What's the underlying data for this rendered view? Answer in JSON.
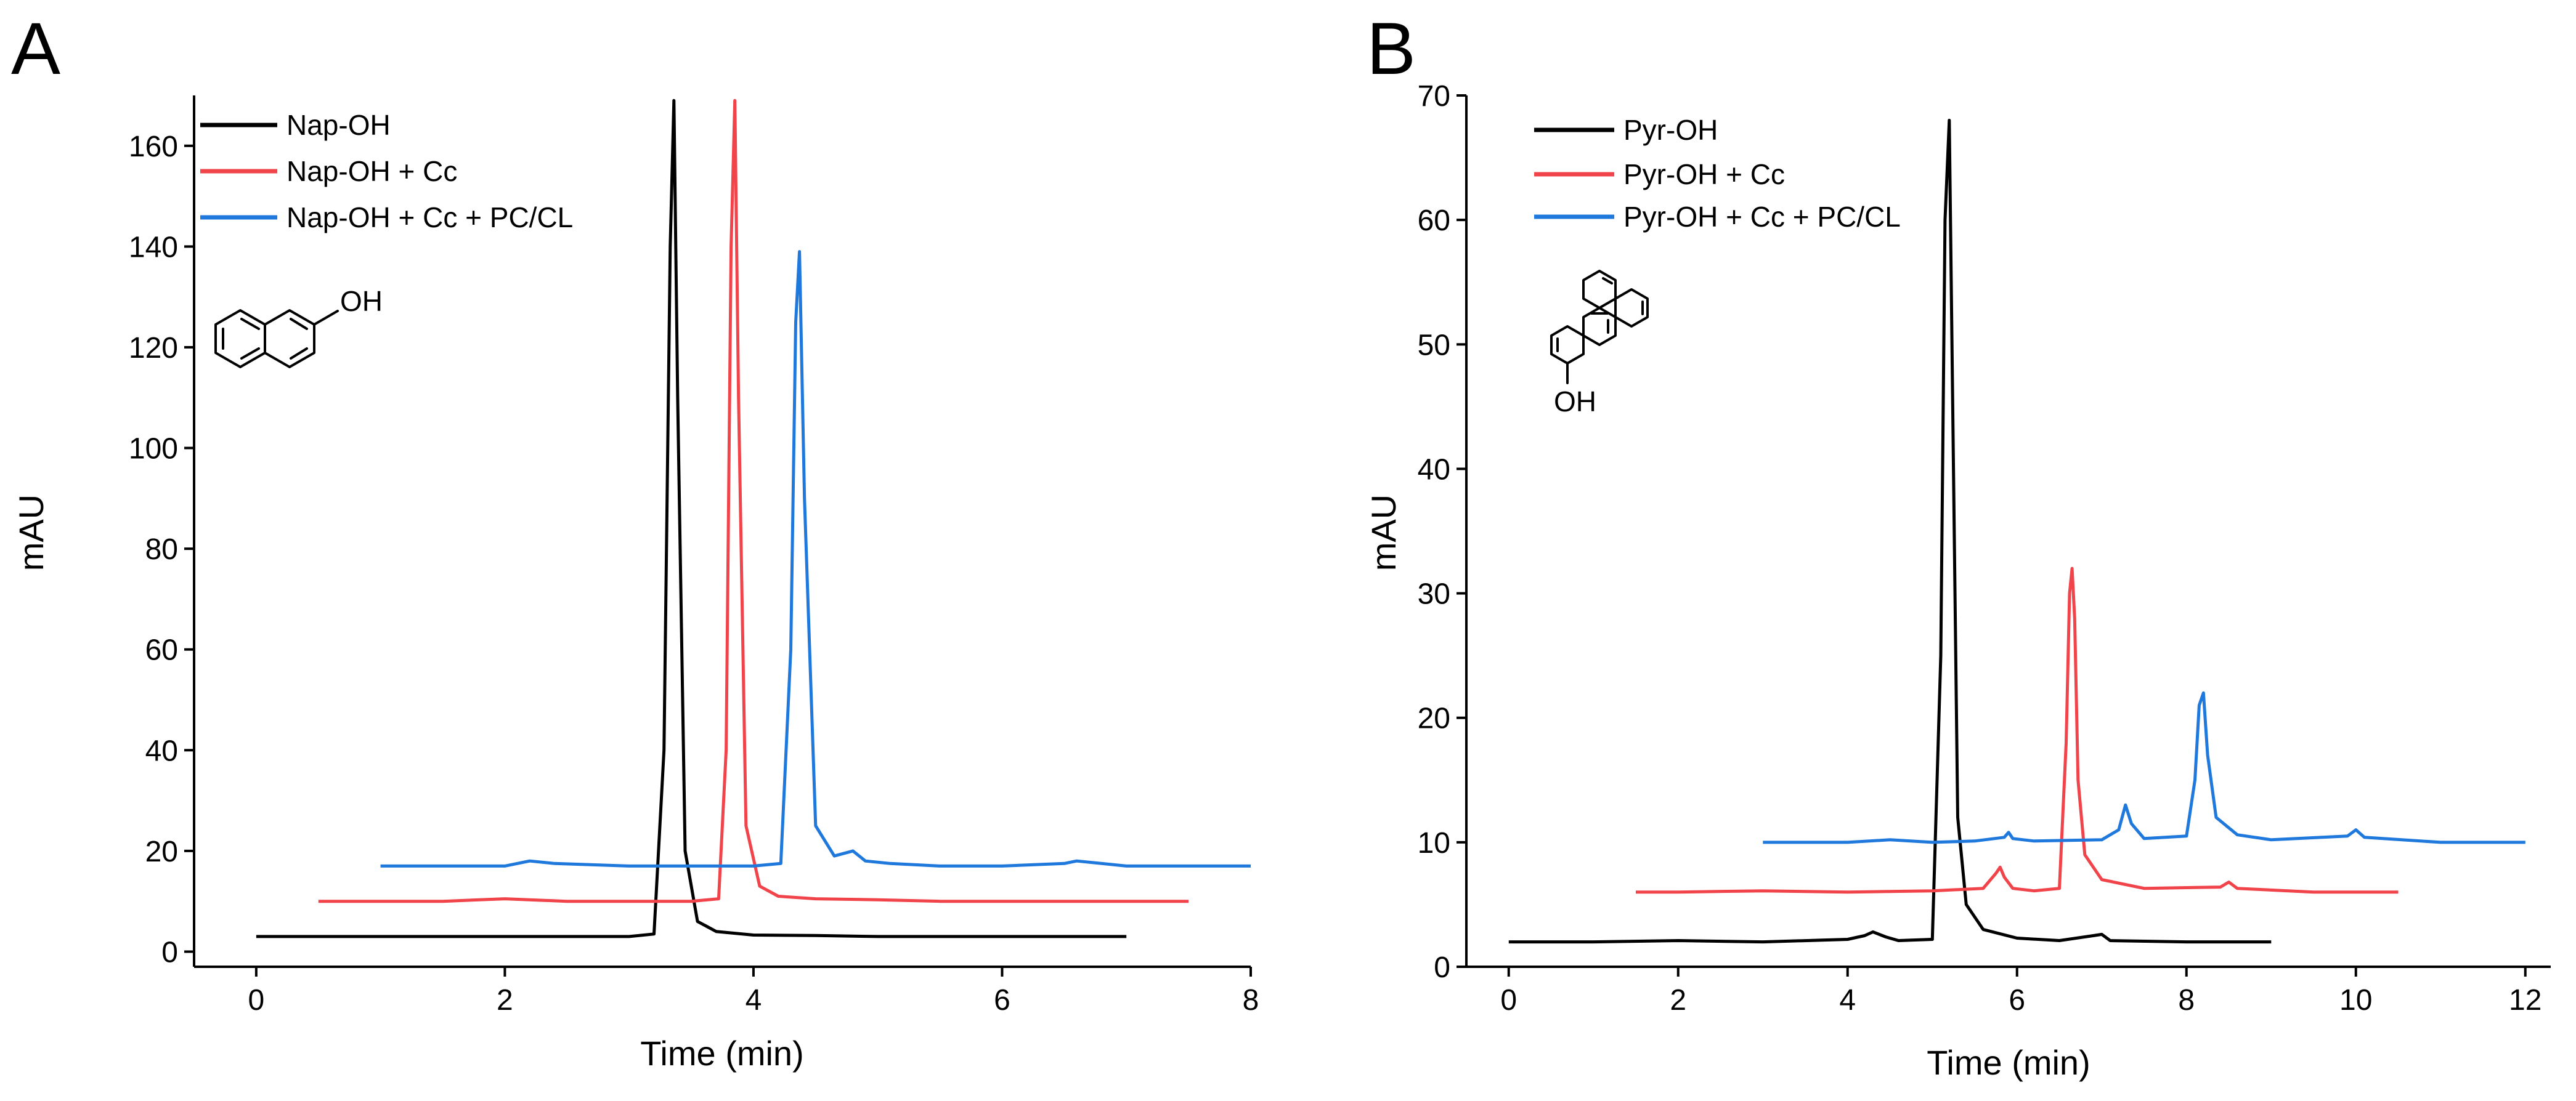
{
  "colors": {
    "black": "#000000",
    "red": "#f0434a",
    "blue": "#1f78dc"
  },
  "chart_data": [
    {
      "type": "line",
      "panel_label": "A",
      "xlabel": "Time (min)",
      "ylabel": "mAU",
      "xlim": [
        -0.5,
        8
      ],
      "ylim": [
        -3,
        170
      ],
      "xticks": [
        0,
        2,
        4,
        6,
        8
      ],
      "yticks": [
        0,
        20,
        40,
        60,
        80,
        100,
        120,
        140,
        160
      ],
      "legend_position": "top-left",
      "structure_label": "OH",
      "structure_icon": "naphthol-structure-icon",
      "series": [
        {
          "name": "Nap-OH",
          "color": "#000000",
          "x": [
            0,
            0.5,
            1,
            1.5,
            2,
            2.5,
            3,
            3.2,
            3.28,
            3.33,
            3.36,
            3.39,
            3.45,
            3.55,
            3.7,
            4,
            4.5,
            5,
            5.5,
            6,
            6.5,
            7
          ],
          "y": [
            3,
            3,
            3,
            3,
            3,
            3,
            3,
            3.5,
            40,
            140,
            169,
            110,
            20,
            6,
            4,
            3.3,
            3.2,
            3,
            3,
            3,
            3,
            3
          ]
        },
        {
          "name": "Nap-OH + Cc",
          "color": "#f0434a",
          "x": [
            0.5,
            1,
            1.5,
            2,
            2.5,
            3,
            3.5,
            3.72,
            3.78,
            3.82,
            3.85,
            3.88,
            3.94,
            4.05,
            4.2,
            4.5,
            5,
            5.5,
            6,
            6.5,
            7,
            7.5
          ],
          "y": [
            10,
            10,
            10,
            10.5,
            10,
            10,
            10,
            10.5,
            40,
            140,
            169,
            110,
            25,
            13,
            11,
            10.5,
            10.3,
            10,
            10,
            10,
            10,
            10
          ]
        },
        {
          "name": "Nap-OH + Cc + PC/CL",
          "color": "#1f78dc",
          "x": [
            1,
            1.5,
            2,
            2.2,
            2.4,
            3,
            3.5,
            4,
            4.22,
            4.3,
            4.34,
            4.37,
            4.41,
            4.5,
            4.65,
            4.8,
            4.9,
            5.1,
            5.5,
            6,
            6.5,
            6.6,
            7,
            7.5,
            8
          ],
          "y": [
            17,
            17,
            17,
            18,
            17.5,
            17,
            17,
            17,
            17.5,
            60,
            125,
            139,
            90,
            25,
            19,
            20,
            18,
            17.5,
            17,
            17,
            17.5,
            18,
            17,
            17,
            17
          ]
        }
      ]
    },
    {
      "type": "line",
      "panel_label": "B",
      "xlabel": "Time (min)",
      "ylabel": "mAU",
      "xlim": [
        -0.5,
        12.3
      ],
      "ylim": [
        0,
        70
      ],
      "xticks": [
        0,
        2,
        4,
        6,
        8,
        10,
        12
      ],
      "yticks": [
        0,
        10,
        20,
        30,
        40,
        50,
        60,
        70
      ],
      "legend_position": "top-left",
      "structure_label": "OH",
      "structure_icon": "pyrenol-structure-icon",
      "series": [
        {
          "name": "Pyr-OH",
          "color": "#000000",
          "x": [
            0,
            1,
            2,
            3,
            4,
            4.2,
            4.3,
            4.45,
            4.6,
            5,
            5.1,
            5.15,
            5.2,
            5.25,
            5.3,
            5.4,
            5.6,
            6,
            6.5,
            6.9,
            7,
            7.1,
            8,
            9
          ],
          "y": [
            2,
            2,
            2.1,
            2,
            2.2,
            2.5,
            2.8,
            2.4,
            2.1,
            2.2,
            25,
            60,
            68,
            40,
            12,
            5,
            3,
            2.3,
            2.1,
            2.5,
            2.6,
            2.1,
            2,
            2
          ]
        },
        {
          "name": "Pyr-OH + Cc",
          "color": "#f0434a",
          "x": [
            1.5,
            2,
            3,
            4,
            5,
            5.6,
            5.75,
            5.8,
            5.85,
            5.95,
            6.2,
            6.5,
            6.58,
            6.62,
            6.65,
            6.68,
            6.72,
            6.8,
            7,
            7.5,
            8.4,
            8.5,
            8.6,
            9.5,
            10.5
          ],
          "y": [
            6,
            6,
            6.1,
            6,
            6.1,
            6.3,
            7.5,
            8,
            7.2,
            6.3,
            6.1,
            6.3,
            18,
            30,
            32,
            28,
            15,
            9,
            7,
            6.3,
            6.4,
            6.8,
            6.3,
            6,
            6
          ]
        },
        {
          "name": "Pyr-OH + Cc + PC/CL",
          "color": "#1f78dc",
          "x": [
            3,
            4,
            4.5,
            5,
            5.5,
            5.85,
            5.9,
            5.95,
            6.2,
            7,
            7.2,
            7.28,
            7.35,
            7.5,
            8,
            8.1,
            8.15,
            8.2,
            8.25,
            8.35,
            8.6,
            9,
            9.9,
            10,
            10.1,
            11,
            12
          ],
          "y": [
            10,
            10,
            10.2,
            10,
            10.1,
            10.4,
            10.8,
            10.3,
            10.1,
            10.2,
            11,
            13,
            11.5,
            10.3,
            10.5,
            15,
            21,
            22,
            17,
            12,
            10.6,
            10.2,
            10.5,
            11,
            10.4,
            10,
            10
          ]
        }
      ]
    }
  ]
}
